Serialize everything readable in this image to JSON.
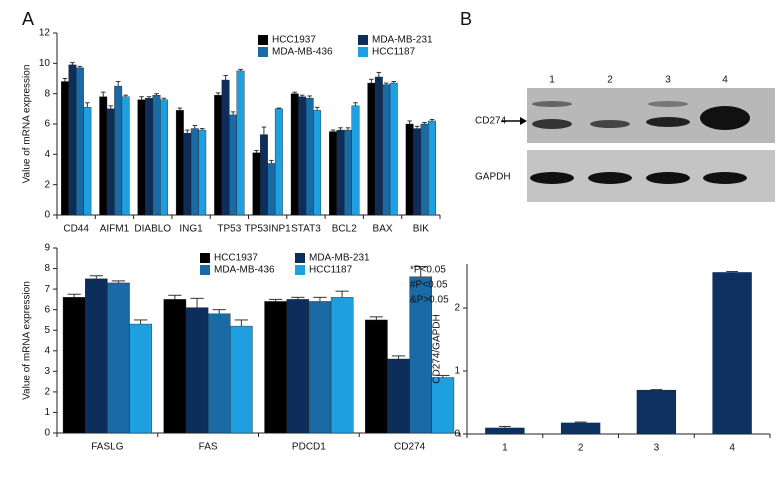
{
  "panel_labels": [
    "A",
    "B"
  ],
  "blot": {
    "lanes": [
      "1",
      "2",
      "3",
      "4"
    ],
    "rows": [
      "CD274",
      "GAPDH"
    ]
  },
  "chart_data": [
    {
      "type": "grouped-bar",
      "ylabel": "Value of mRNA expression",
      "categories": [
        "CD44",
        "AIFM1",
        "DIABLO",
        "ING1",
        "TP53",
        "TP53INP1",
        "STAT3",
        "BCL2",
        "BAX",
        "BIK"
      ],
      "series": [
        {
          "name": "HCC1937",
          "color": "#000000",
          "values": [
            8.8,
            7.8,
            7.6,
            6.9,
            7.9,
            4.1,
            8.0,
            5.5,
            8.7,
            6.0
          ],
          "errors": [
            0.2,
            0.3,
            0.2,
            0.15,
            0.15,
            0.15,
            0.1,
            0.1,
            0.25,
            0.2
          ]
        },
        {
          "name": "MDA-MB-231",
          "color": "#0d2d5a",
          "values": [
            9.9,
            7.0,
            7.7,
            5.4,
            8.9,
            5.3,
            7.8,
            5.6,
            9.1,
            5.7
          ],
          "errors": [
            0.15,
            0.2,
            0.1,
            0.2,
            0.3,
            0.5,
            0.1,
            0.15,
            0.3,
            0.15
          ]
        },
        {
          "name": "MDA-MB-436",
          "color": "#1a6aa6",
          "values": [
            9.7,
            8.5,
            7.9,
            5.7,
            6.6,
            3.4,
            7.7,
            5.6,
            8.6,
            6.0
          ],
          "errors": [
            0.1,
            0.3,
            0.1,
            0.2,
            0.2,
            0.2,
            0.15,
            0.15,
            0.1,
            0.1
          ]
        },
        {
          "name": "HCC1187",
          "color": "#1ea0e0",
          "values": [
            7.1,
            7.8,
            7.6,
            5.6,
            9.5,
            7.0,
            6.9,
            7.2,
            8.7,
            6.2
          ],
          "errors": [
            0.3,
            0.1,
            0.1,
            0.1,
            0.1,
            0.05,
            0.2,
            0.2,
            0.1,
            0.1
          ]
        }
      ],
      "ylim": [
        0,
        12
      ],
      "yticks": [
        0,
        2,
        4,
        6,
        8,
        10,
        12
      ],
      "legend": "upper center"
    },
    {
      "type": "grouped-bar",
      "ylabel": "Value of mRNA expression",
      "categories": [
        "FASLG",
        "FAS",
        "PDCD1",
        "CD274"
      ],
      "series": [
        {
          "name": "HCC1937",
          "color": "#000000",
          "values": [
            6.6,
            6.5,
            6.4,
            5.5
          ],
          "errors": [
            0.15,
            0.2,
            0.1,
            0.15
          ]
        },
        {
          "name": "MDA-MB-231",
          "color": "#0d2d5a",
          "values": [
            7.5,
            6.1,
            6.5,
            3.6
          ],
          "errors": [
            0.15,
            0.45,
            0.1,
            0.15
          ]
        },
        {
          "name": "MDA-MB-436",
          "color": "#1a6aa6",
          "values": [
            7.3,
            5.8,
            6.4,
            7.6
          ],
          "errors": [
            0.1,
            0.2,
            0.2,
            0.5
          ]
        },
        {
          "name": "HCC1187",
          "color": "#1ea0e0",
          "values": [
            5.3,
            5.2,
            6.6,
            2.7
          ],
          "errors": [
            0.2,
            0.3,
            0.3,
            0.1
          ]
        }
      ],
      "ylim": [
        0,
        9
      ],
      "yticks": [
        0,
        1,
        2,
        3,
        4,
        5,
        6,
        7,
        8,
        9
      ],
      "legend": "upper center",
      "annotations": [
        "*P<0.05",
        "#P<0.05",
        "&P>0.05"
      ]
    },
    {
      "type": "bar",
      "ylabel": "CD274/GAPDH",
      "categories": [
        "1",
        "2",
        "3",
        "4"
      ],
      "values": [
        0.1,
        0.18,
        0.7,
        2.57
      ],
      "errors": [
        0.02,
        0.01,
        0.005,
        0.01
      ],
      "color": "#0d3060",
      "ylim": [
        0,
        2.7
      ],
      "yticks": [
        0,
        1,
        2
      ]
    }
  ]
}
